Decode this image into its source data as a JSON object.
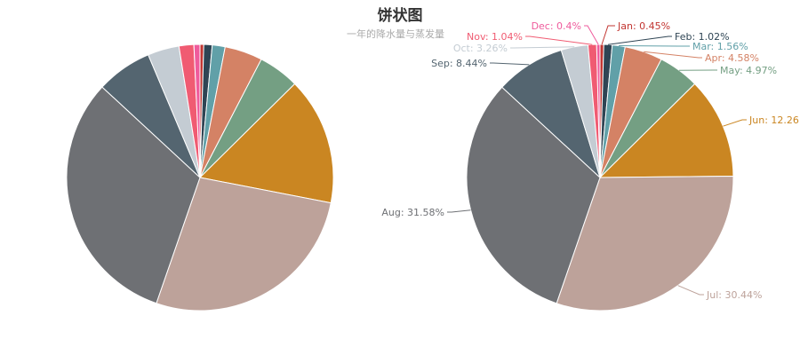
{
  "title": "饼状图",
  "subtitle": "一年的降水量与蒸发量",
  "colors": {
    "Jan": "#c23531",
    "Feb": "#2f4554",
    "Mar": "#61a0a8",
    "Apr": "#d48265",
    "May": "#749f83",
    "Jun": "#ca8622",
    "Jul": "#bda29a",
    "Aug": "#6e7074",
    "Sep": "#546570",
    "Oct": "#c4ccd3",
    "Nov": "#f05b72",
    "Dec": "#ef5b9c"
  },
  "chart_data": [
    {
      "type": "pie",
      "labels_shown": false,
      "categories": [
        "Jan",
        "Feb",
        "Mar",
        "Apr",
        "May",
        "Jun",
        "Jul",
        "Aug",
        "Sep",
        "Oct",
        "Nov",
        "Dec"
      ],
      "values": [
        0.45,
        1.02,
        1.56,
        4.58,
        4.97,
        15.48,
        27.25,
        31.58,
        6.76,
        3.82,
        1.8,
        0.73
      ]
    },
    {
      "type": "pie",
      "labels_shown": true,
      "categories": [
        "Jan",
        "Feb",
        "Mar",
        "Apr",
        "May",
        "Jun",
        "Jul",
        "Aug",
        "Sep",
        "Oct",
        "Nov",
        "Dec"
      ],
      "values": [
        0.45,
        1.02,
        1.56,
        4.58,
        4.97,
        12.26,
        30.44,
        31.58,
        8.44,
        3.26,
        1.04,
        0.4
      ],
      "labels": [
        "Jan: 0.45%",
        "Feb: 1.02%",
        "Mar: 1.56%",
        "Apr: 4.58%",
        "May: 4.97%",
        "Jun: 12.26",
        "Jul: 30.44%",
        "Aug: 31.58%",
        "Sep: 8.44%",
        "Oct: 3.26%",
        "Nov: 1.04%",
        "Dec: 0.4%"
      ]
    }
  ]
}
